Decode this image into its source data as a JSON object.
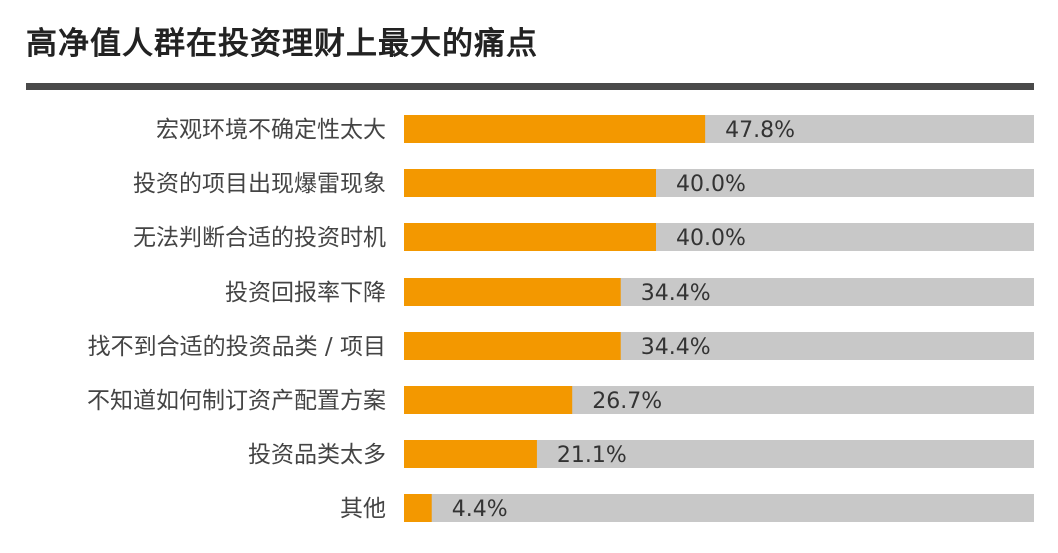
{
  "chart_data": {
    "type": "bar",
    "orientation": "horizontal",
    "title": "高净值人群在投资理财上最大的痛点",
    "categories": [
      "宏观环境不确定性太大",
      "投资的项目出现爆雷现象",
      "无法判断合适的投资时机",
      "投资回报率下降",
      "找不到合适的投资品类 / 项目",
      "不知道如何制订资产配置方案",
      "投资品类太多",
      "其他"
    ],
    "values": [
      47.8,
      40.0,
      40.0,
      34.4,
      34.4,
      26.7,
      21.1,
      4.4
    ],
    "value_labels": [
      "47.8%",
      "40.0%",
      "40.0%",
      "34.4%",
      "34.4%",
      "26.7%",
      "21.1%",
      "4.4%"
    ],
    "xlim": [
      0,
      100
    ],
    "unit": "%",
    "grid": false,
    "colors": {
      "bar": "#f39800",
      "track": "#c8c8c8",
      "rule": "#4a4a4a"
    }
  }
}
